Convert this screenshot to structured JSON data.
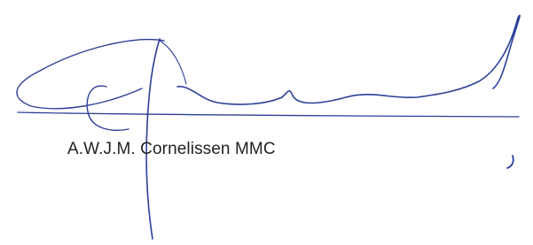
{
  "signature": {
    "name": "A.W.J.M. Cornelissen MMC"
  }
}
